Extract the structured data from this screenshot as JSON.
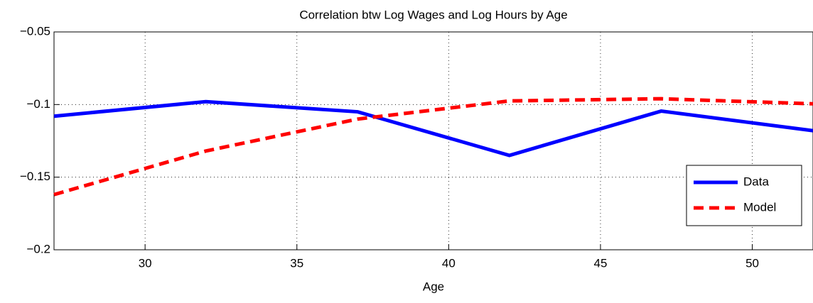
{
  "chart_data": {
    "type": "line",
    "title": "Correlation btw Log Wages and Log Hours by Age",
    "xlabel": "Age",
    "x": [
      27,
      32,
      37,
      42,
      47,
      52
    ],
    "series": [
      {
        "name": "Data",
        "color": "#0000ff",
        "style": "solid",
        "values": [
          -0.108,
          -0.098,
          -0.105,
          -0.135,
          -0.1045,
          -0.118
        ]
      },
      {
        "name": "Model",
        "color": "#ff0000",
        "style": "dashed",
        "values": [
          -0.162,
          -0.132,
          -0.11,
          -0.0975,
          -0.096,
          -0.0995
        ]
      }
    ],
    "xlim": [
      27,
      52
    ],
    "xticks": [
      30,
      35,
      40,
      45,
      50
    ],
    "ylim": [
      -0.2,
      -0.05
    ],
    "yticks": [
      {
        "value": -0.2,
        "label": "−0.2"
      },
      {
        "value": -0.15,
        "label": "−0.15"
      },
      {
        "value": -0.1,
        "label": "−0.1"
      },
      {
        "value": -0.05,
        "label": "−0.05"
      }
    ],
    "grid": true,
    "legend": "lower-right"
  }
}
